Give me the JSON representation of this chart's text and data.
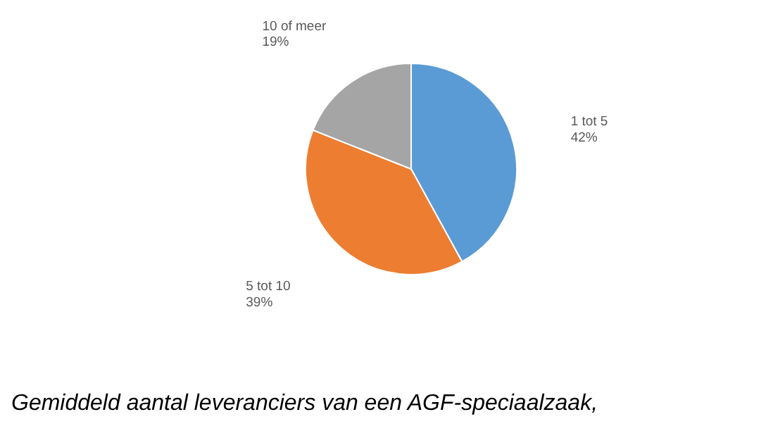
{
  "chart_data": {
    "type": "pie",
    "categories": [
      "1 tot 5",
      "5 tot 10",
      "10 of meer"
    ],
    "values": [
      42,
      39,
      19
    ],
    "value_labels": [
      "42%",
      "39%",
      "19%"
    ],
    "colors": [
      "#5b9bd5",
      "#ed7d31",
      "#a5a5a5"
    ],
    "annotations": [
      "Gemiddeld aantal leveranciers van een AGF-speciaalzaak,"
    ]
  }
}
